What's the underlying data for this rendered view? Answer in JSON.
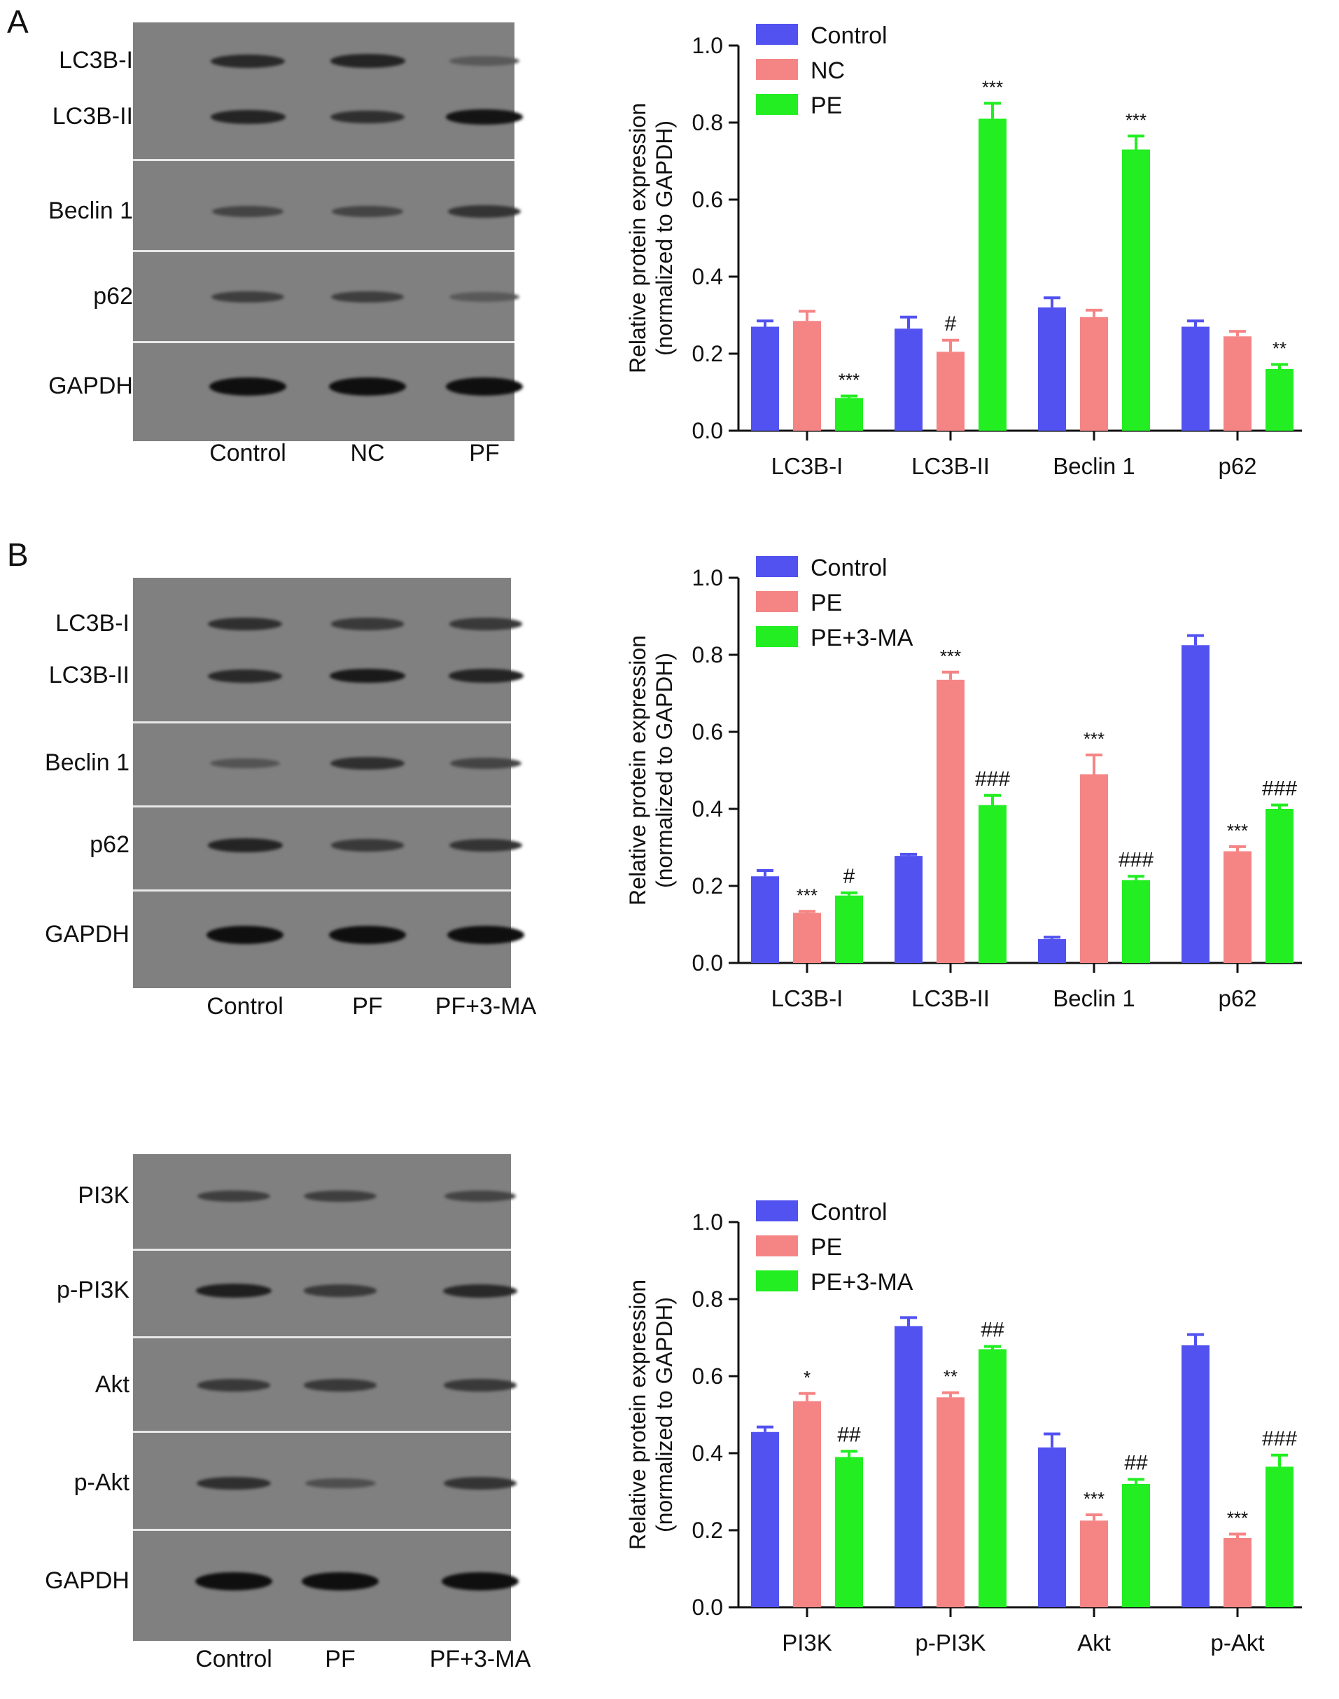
{
  "panel_labels": [
    "A",
    "B"
  ],
  "blots": [
    {
      "rows": [
        {
          "label": "LC3B-I",
          "intensity": [
            0.75,
            0.8,
            0.3
          ]
        },
        {
          "label": "LC3B-II",
          "intensity": [
            0.8,
            0.7,
            0.95
          ]
        },
        {
          "label": "Beclin 1",
          "intensity": [
            0.5,
            0.5,
            0.65
          ]
        },
        {
          "label": "p62",
          "intensity": [
            0.55,
            0.55,
            0.3
          ]
        },
        {
          "label": "GAPDH",
          "intensity": [
            1.0,
            1.0,
            1.0
          ]
        }
      ],
      "lanes": [
        "Control",
        "NC",
        "PF"
      ]
    },
    {
      "rows": [
        {
          "label": "LC3B-I",
          "intensity": [
            0.7,
            0.6,
            0.6
          ]
        },
        {
          "label": "LC3B-II",
          "intensity": [
            0.75,
            0.9,
            0.8
          ]
        },
        {
          "label": "Beclin 1",
          "intensity": [
            0.35,
            0.7,
            0.5
          ]
        },
        {
          "label": "p62",
          "intensity": [
            0.8,
            0.6,
            0.65
          ]
        },
        {
          "label": "GAPDH",
          "intensity": [
            1.0,
            1.0,
            1.0
          ]
        }
      ],
      "lanes": [
        "Control",
        "PF",
        "PF+3-MA"
      ]
    },
    {
      "rows": [
        {
          "label": "PI3K",
          "intensity": [
            0.55,
            0.55,
            0.5
          ]
        },
        {
          "label": "p-PI3K",
          "intensity": [
            0.85,
            0.6,
            0.75
          ]
        },
        {
          "label": "Akt",
          "intensity": [
            0.6,
            0.6,
            0.6
          ]
        },
        {
          "label": "p-Akt",
          "intensity": [
            0.7,
            0.4,
            0.65
          ]
        },
        {
          "label": "GAPDH",
          "intensity": [
            1.0,
            1.0,
            1.0
          ]
        }
      ],
      "lanes": [
        "Control",
        "PF",
        "PF+3-MA"
      ]
    }
  ],
  "colors": {
    "blue": "#5252f0",
    "red": "#f58585",
    "green": "#22ee22"
  },
  "chart_data": [
    {
      "type": "bar",
      "ylabel": [
        "Relative protein expression",
        "(normalized to GAPDH)"
      ],
      "ylim": [
        0,
        1.0
      ],
      "yticks": [
        "0.0",
        "0.2",
        "0.4",
        "0.6",
        "0.8",
        "1.0"
      ],
      "categories": [
        "LC3B-I",
        "LC3B-II",
        "Beclin 1",
        "p62"
      ],
      "series": [
        {
          "name": "Control",
          "color": "blue",
          "values": [
            0.27,
            0.265,
            0.32,
            0.27
          ],
          "errors": [
            0.015,
            0.03,
            0.025,
            0.015
          ],
          "annotations": [
            "",
            "",
            "",
            ""
          ]
        },
        {
          "name": "NC",
          "color": "red",
          "values": [
            0.285,
            0.205,
            0.295,
            0.245
          ],
          "errors": [
            0.025,
            0.03,
            0.018,
            0.013
          ],
          "annotations": [
            "",
            "#",
            "",
            ""
          ]
        },
        {
          "name": "PE",
          "color": "green",
          "values": [
            0.085,
            0.81,
            0.73,
            0.16
          ],
          "errors": [
            0.005,
            0.04,
            0.035,
            0.012
          ],
          "annotations": [
            "***",
            "***",
            "***",
            "**"
          ]
        }
      ]
    },
    {
      "type": "bar",
      "ylabel": [
        "Relative protein expression",
        "(normalized to GAPDH)"
      ],
      "ylim": [
        0,
        1.0
      ],
      "yticks": [
        "0.0",
        "0.2",
        "0.4",
        "0.6",
        "0.8",
        "1.0"
      ],
      "categories": [
        "LC3B-I",
        "LC3B-II",
        "Beclin 1",
        "p62"
      ],
      "series": [
        {
          "name": "Control",
          "color": "blue",
          "values": [
            0.225,
            0.278,
            0.062,
            0.825
          ],
          "errors": [
            0.015,
            0.004,
            0.005,
            0.025
          ],
          "annotations": [
            "",
            "",
            "",
            ""
          ]
        },
        {
          "name": "PE",
          "color": "red",
          "values": [
            0.13,
            0.735,
            0.49,
            0.29
          ],
          "errors": [
            0.004,
            0.02,
            0.05,
            0.012
          ],
          "annotations": [
            "***",
            "***",
            "***",
            "***"
          ]
        },
        {
          "name": "PE+3-MA",
          "color": "green",
          "values": [
            0.175,
            0.41,
            0.215,
            0.4
          ],
          "errors": [
            0.007,
            0.025,
            0.01,
            0.01
          ],
          "annotations": [
            "#",
            "###",
            "###",
            "###"
          ]
        }
      ]
    },
    {
      "type": "bar",
      "ylabel": [
        "Relative protein expression",
        "(normalized to GAPDH)"
      ],
      "ylim": [
        0,
        1.0
      ],
      "yticks": [
        "0.0",
        "0.2",
        "0.4",
        "0.6",
        "0.8",
        "1.0"
      ],
      "categories": [
        "PI3K",
        "p-PI3K",
        "Akt",
        "p-Akt"
      ],
      "series": [
        {
          "name": "Control",
          "color": "blue",
          "values": [
            0.455,
            0.73,
            0.415,
            0.68
          ],
          "errors": [
            0.013,
            0.022,
            0.035,
            0.028
          ],
          "annotations": [
            "",
            "",
            "",
            ""
          ]
        },
        {
          "name": "PE",
          "color": "red",
          "values": [
            0.535,
            0.545,
            0.225,
            0.18
          ],
          "errors": [
            0.02,
            0.012,
            0.015,
            0.01
          ],
          "annotations": [
            "*",
            "**",
            "***",
            "***"
          ]
        },
        {
          "name": "PE+3-MA",
          "color": "green",
          "values": [
            0.39,
            0.67,
            0.32,
            0.365
          ],
          "errors": [
            0.015,
            0.007,
            0.012,
            0.03
          ],
          "annotations": [
            "##",
            "##",
            "##",
            "###"
          ]
        }
      ]
    }
  ]
}
